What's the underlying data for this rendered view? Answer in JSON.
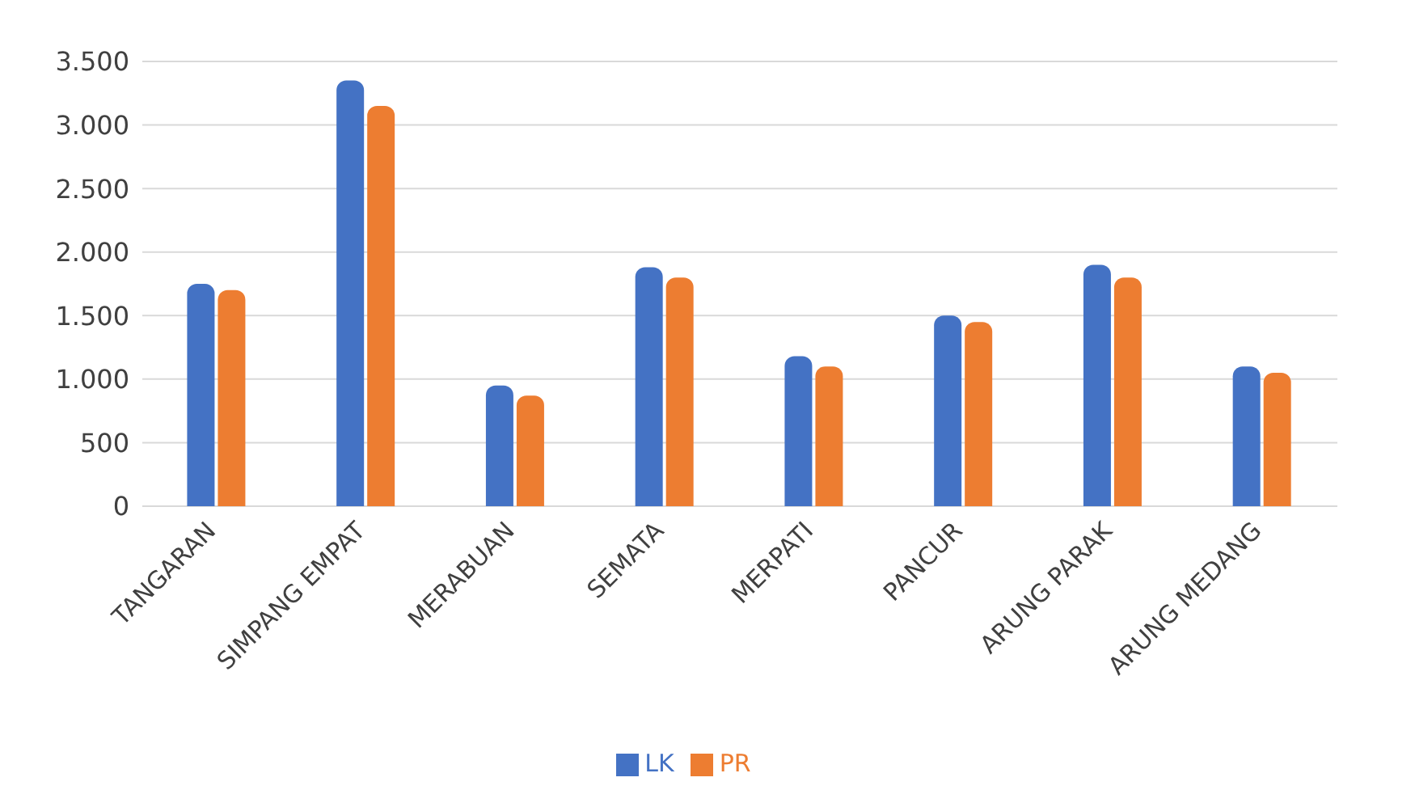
{
  "chart_data": {
    "type": "bar",
    "categories": [
      "TANGARAN",
      "SIMPANG EMPAT",
      "MERABUAN",
      "SEMATA",
      "MERPATI",
      "PANCUR",
      "ARUNG PARAK",
      "ARUNG MEDANG"
    ],
    "series": [
      {
        "name": "LK",
        "color": "#4472c4",
        "values": [
          1750,
          3350,
          950,
          1880,
          1180,
          1500,
          1900,
          1100
        ]
      },
      {
        "name": "PR",
        "color": "#ed7d31",
        "values": [
          1700,
          3150,
          870,
          1800,
          1100,
          1450,
          1800,
          1050
        ]
      }
    ],
    "ylim": [
      0,
      3500
    ],
    "yticks": [
      {
        "value": 0,
        "label": "0"
      },
      {
        "value": 500,
        "label": "500"
      },
      {
        "value": 1000,
        "label": "1.000"
      },
      {
        "value": 1500,
        "label": "1.500"
      },
      {
        "value": 2000,
        "label": "2.000"
      },
      {
        "value": 2500,
        "label": "2.500"
      },
      {
        "value": 3000,
        "label": "3.000"
      },
      {
        "value": 3500,
        "label": "3.500"
      }
    ],
    "grid": "y",
    "legend": "bottom"
  }
}
